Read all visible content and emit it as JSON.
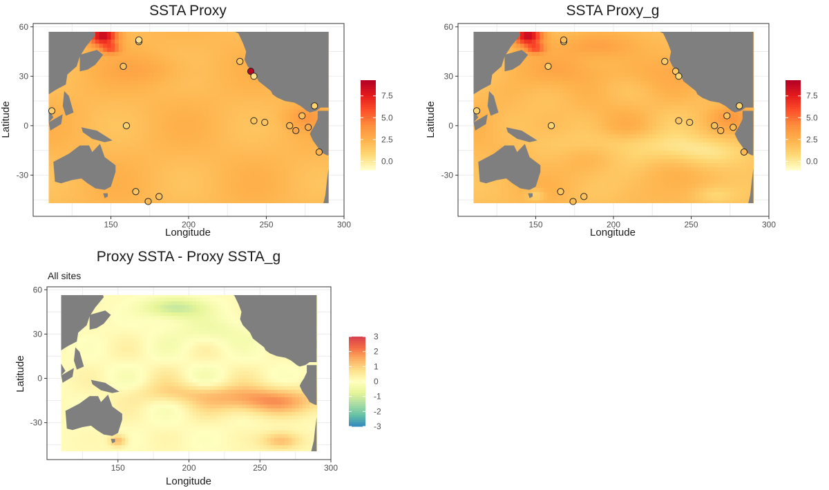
{
  "chart_data": [
    {
      "type": "heatmap",
      "title": "SSTA Proxy",
      "subtitle": "",
      "xlabel": "Longitude",
      "ylabel": "Latitude",
      "xlim": [
        100,
        300
      ],
      "ylim": [
        -55,
        62
      ],
      "extent": {
        "lon": [
          110,
          290
        ],
        "lat": [
          -50,
          60
        ]
      },
      "xticks": [
        150,
        200,
        250,
        300
      ],
      "yticks": [
        -30,
        0,
        30,
        60
      ],
      "grid": true,
      "legend": {
        "position": "right",
        "breaks": [
          0.0,
          2.5,
          5.0,
          7.5
        ],
        "labels": [
          "0.0",
          "2.5",
          "5.0",
          "7.5"
        ],
        "range": [
          -1.0,
          9.3
        ],
        "palette": [
          "#ffffcc",
          "#fed976",
          "#feb24c",
          "#fd8d3c",
          "#fc4e2a",
          "#e31a1c",
          "#b10026"
        ]
      },
      "field": "proxy",
      "points": [
        {
          "lon": 112,
          "lat": 9,
          "value": 1.2
        },
        {
          "lon": 158,
          "lat": 36,
          "value": 1.8
        },
        {
          "lon": 160,
          "lat": 0,
          "value": 1.0
        },
        {
          "lon": 168,
          "lat": 51,
          "value": 0.6
        },
        {
          "lon": 168,
          "lat": 52,
          "value": 0.2
        },
        {
          "lon": 233,
          "lat": 39,
          "value": 1.5
        },
        {
          "lon": 240,
          "lat": 33,
          "value": 9.0
        },
        {
          "lon": 242,
          "lat": 30,
          "value": 0.3
        },
        {
          "lon": 242,
          "lat": 3,
          "value": 1.6
        },
        {
          "lon": 249,
          "lat": 2,
          "value": 1.6
        },
        {
          "lon": 265,
          "lat": 0,
          "value": 2.0
        },
        {
          "lon": 269,
          "lat": -3,
          "value": 3.0
        },
        {
          "lon": 273,
          "lat": 6,
          "value": 1.9
        },
        {
          "lon": 277,
          "lat": -1,
          "value": 2.6
        },
        {
          "lon": 281,
          "lat": 12,
          "value": 1.0
        },
        {
          "lon": 284,
          "lat": -16,
          "value": 2.4
        },
        {
          "lon": 166,
          "lat": -40,
          "value": 1.6
        },
        {
          "lon": 174,
          "lat": -46,
          "value": 2.2
        },
        {
          "lon": 181,
          "lat": -43,
          "value": 1.8
        }
      ]
    },
    {
      "type": "heatmap",
      "title": "SSTA Proxy_g",
      "subtitle": "",
      "xlabel": "Longitude",
      "ylabel": "Latitude",
      "xlim": [
        100,
        300
      ],
      "ylim": [
        -55,
        62
      ],
      "extent": {
        "lon": [
          110,
          290
        ],
        "lat": [
          -50,
          60
        ]
      },
      "xticks": [
        150,
        200,
        250,
        300
      ],
      "yticks": [
        -30,
        0,
        30,
        60
      ],
      "grid": true,
      "legend": {
        "position": "right",
        "breaks": [
          0.0,
          2.5,
          5.0,
          7.5
        ],
        "labels": [
          "0.0",
          "2.5",
          "5.0",
          "7.5"
        ],
        "range": [
          -1.0,
          9.3
        ],
        "palette": [
          "#ffffcc",
          "#fed976",
          "#feb24c",
          "#fd8d3c",
          "#fc4e2a",
          "#e31a1c",
          "#b10026"
        ]
      },
      "field": "proxy_g",
      "points": [
        {
          "lon": 112,
          "lat": 9,
          "value": 1.0
        },
        {
          "lon": 158,
          "lat": 36,
          "value": 1.2
        },
        {
          "lon": 160,
          "lat": 0,
          "value": 0.9
        },
        {
          "lon": 168,
          "lat": 51,
          "value": 0.4
        },
        {
          "lon": 168,
          "lat": 52,
          "value": 2.0
        },
        {
          "lon": 233,
          "lat": 39,
          "value": 1.3
        },
        {
          "lon": 240,
          "lat": 33,
          "value": 1.4
        },
        {
          "lon": 242,
          "lat": 30,
          "value": 0.8
        },
        {
          "lon": 242,
          "lat": 3,
          "value": 1.5
        },
        {
          "lon": 249,
          "lat": 2,
          "value": 1.5
        },
        {
          "lon": 265,
          "lat": 0,
          "value": 1.8
        },
        {
          "lon": 269,
          "lat": -3,
          "value": 2.2
        },
        {
          "lon": 273,
          "lat": 6,
          "value": 1.8
        },
        {
          "lon": 277,
          "lat": -1,
          "value": 2.0
        },
        {
          "lon": 281,
          "lat": 12,
          "value": 0.9
        },
        {
          "lon": 284,
          "lat": -16,
          "value": 2.2
        },
        {
          "lon": 166,
          "lat": -40,
          "value": 1.5
        },
        {
          "lon": 174,
          "lat": -46,
          "value": 2.0
        },
        {
          "lon": 181,
          "lat": -43,
          "value": 1.7
        }
      ]
    },
    {
      "type": "heatmap",
      "title": "Proxy SSTA - Proxy SSTA_g",
      "subtitle": "All sites",
      "xlabel": "Longitude",
      "ylabel": "Latitude",
      "xlim": [
        100,
        300
      ],
      "ylim": [
        -55,
        62
      ],
      "extent": {
        "lon": [
          110,
          290
        ],
        "lat": [
          -50,
          60
        ]
      },
      "xticks": [
        150,
        200,
        250,
        300
      ],
      "yticks": [
        -30,
        0,
        30,
        60
      ],
      "grid": true,
      "legend": {
        "position": "right",
        "breaks": [
          -3,
          -2,
          -1,
          0,
          1,
          2,
          3
        ],
        "labels": [
          "-3",
          "-2",
          "-1",
          "0",
          "1",
          "2",
          "3"
        ],
        "range": [
          -3,
          3
        ],
        "palette": [
          "#3288bd",
          "#66c2a5",
          "#abdda4",
          "#e6f598",
          "#ffffbf",
          "#fee08b",
          "#fdae61",
          "#f46d43",
          "#d53e4f"
        ]
      },
      "field": "diff",
      "points": []
    }
  ]
}
